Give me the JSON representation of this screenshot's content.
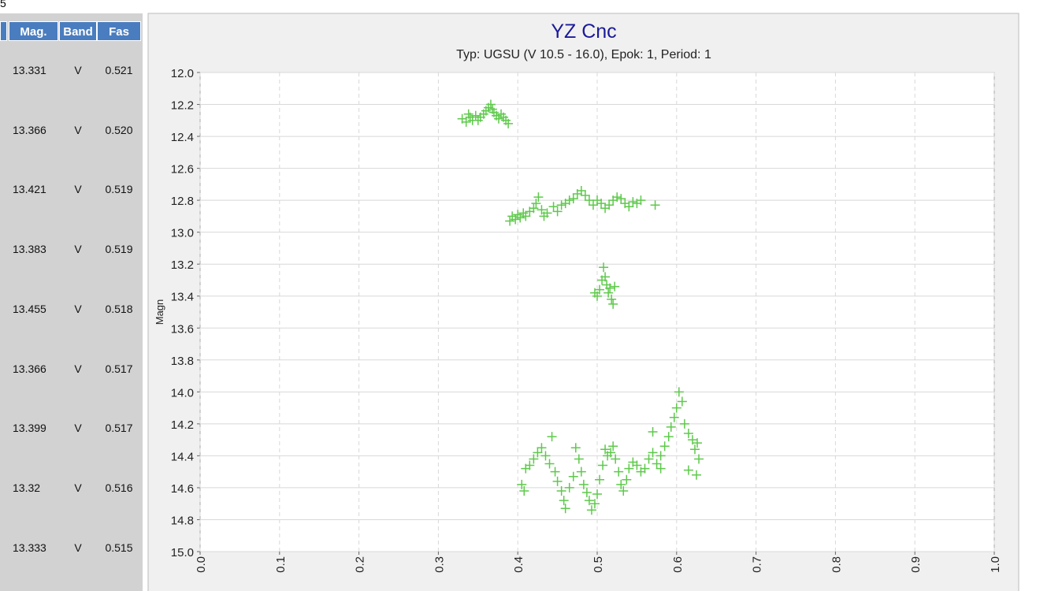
{
  "top_fragment": "5",
  "table": {
    "columns": [
      "Mag.",
      "Band",
      "Fas"
    ],
    "rows": [
      [
        "13.331",
        "V",
        "0.521"
      ],
      [
        "13.366",
        "V",
        "0.520"
      ],
      [
        "13.421",
        "V",
        "0.519"
      ],
      [
        "13.383",
        "V",
        "0.519"
      ],
      [
        "13.455",
        "V",
        "0.518"
      ],
      [
        "13.366",
        "V",
        "0.517"
      ],
      [
        "13.399",
        "V",
        "0.517"
      ],
      [
        "13.32",
        "V",
        "0.516"
      ],
      [
        "13.333",
        "V",
        "0.515"
      ]
    ]
  },
  "chart_data": {
    "type": "scatter",
    "title": "YZ Cnc",
    "subtitle": "Typ: UGSU (V 10.5 - 16.0), Epok: 1, Period: 1",
    "y_label": "Magn",
    "xlim": [
      0,
      1
    ],
    "ylim": [
      12,
      15
    ],
    "y_reversed": true,
    "xticks": [
      {
        "value": 0,
        "label": "0.0"
      },
      0.1,
      0.2,
      0.3,
      0.4,
      0.5,
      0.6,
      0.7,
      0.8,
      0.9,
      {
        "value": 1,
        "label": "1.0"
      }
    ],
    "yticks": [
      {
        "value": 12,
        "label": "12.0"
      },
      12.2,
      12.4,
      12.6,
      12.8,
      {
        "value": 13,
        "label": "13.0"
      },
      13.2,
      13.4,
      13.6,
      13.8,
      {
        "value": 14,
        "label": "14.0"
      },
      14.2,
      14.4,
      14.6,
      14.8,
      {
        "value": 15,
        "label": "15.0"
      }
    ],
    "grid": true,
    "series": [
      {
        "color": "#5ec94b",
        "x": [
          0.33,
          0.335,
          0.34,
          0.343,
          0.347,
          0.35,
          0.353,
          0.357,
          0.36,
          0.363,
          0.366,
          0.37,
          0.373,
          0.376,
          0.379,
          0.382,
          0.385,
          0.388,
          0.338,
          0.368,
          0.39,
          0.393,
          0.397,
          0.4,
          0.403,
          0.407,
          0.41,
          0.415,
          0.42,
          0.423,
          0.426,
          0.43,
          0.433,
          0.437,
          0.445,
          0.45,
          0.455,
          0.46,
          0.465,
          0.47,
          0.475,
          0.48,
          0.485,
          0.49,
          0.495,
          0.5,
          0.505,
          0.51,
          0.515,
          0.52,
          0.525,
          0.53,
          0.535,
          0.54,
          0.545,
          0.55,
          0.555,
          0.573,
          0.497,
          0.5,
          0.503,
          0.506,
          0.508,
          0.51,
          0.512,
          0.514,
          0.516,
          0.518,
          0.52,
          0.522,
          0.405,
          0.408,
          0.41,
          0.415,
          0.42,
          0.425,
          0.43,
          0.435,
          0.44,
          0.443,
          0.447,
          0.45,
          0.455,
          0.458,
          0.46,
          0.465,
          0.47,
          0.473,
          0.477,
          0.48,
          0.483,
          0.487,
          0.49,
          0.493,
          0.497,
          0.5,
          0.503,
          0.507,
          0.51,
          0.513,
          0.517,
          0.52,
          0.523,
          0.527,
          0.53,
          0.533,
          0.537,
          0.54,
          0.545,
          0.55,
          0.555,
          0.56,
          0.565,
          0.57,
          0.575,
          0.58,
          0.585,
          0.59,
          0.593,
          0.597,
          0.6,
          0.603,
          0.607,
          0.61,
          0.615,
          0.62,
          0.623,
          0.626,
          0.628,
          0.625,
          0.615,
          0.57,
          0.58
        ],
        "y": [
          12.29,
          12.31,
          12.28,
          12.3,
          12.27,
          12.3,
          12.28,
          12.26,
          12.24,
          12.22,
          12.2,
          12.25,
          12.27,
          12.29,
          12.26,
          12.28,
          12.3,
          12.32,
          12.26,
          12.23,
          12.93,
          12.9,
          12.92,
          12.89,
          12.91,
          12.88,
          12.9,
          12.87,
          12.85,
          12.82,
          12.78,
          12.86,
          12.9,
          12.88,
          12.84,
          12.87,
          12.83,
          12.82,
          12.8,
          12.79,
          12.76,
          12.74,
          12.77,
          12.8,
          12.83,
          12.8,
          12.82,
          12.85,
          12.83,
          12.8,
          12.78,
          12.79,
          12.82,
          12.84,
          12.81,
          12.82,
          12.8,
          12.83,
          13.38,
          13.4,
          13.36,
          13.3,
          13.22,
          13.28,
          13.33,
          13.38,
          13.35,
          13.42,
          13.45,
          13.34,
          14.58,
          14.62,
          14.48,
          14.46,
          14.42,
          14.38,
          14.35,
          14.4,
          14.45,
          14.28,
          14.5,
          14.56,
          14.62,
          14.68,
          14.73,
          14.6,
          14.53,
          14.35,
          14.42,
          14.5,
          14.58,
          14.63,
          14.68,
          14.74,
          14.7,
          14.64,
          14.55,
          14.46,
          14.36,
          14.4,
          14.38,
          14.34,
          14.42,
          14.5,
          14.58,
          14.62,
          14.55,
          14.48,
          14.44,
          14.46,
          14.5,
          14.48,
          14.42,
          14.38,
          14.45,
          14.4,
          14.34,
          14.28,
          14.22,
          14.16,
          14.1,
          14.0,
          14.06,
          14.2,
          14.26,
          14.3,
          14.36,
          14.32,
          14.42,
          14.52,
          14.49,
          14.25,
          14.48
        ]
      }
    ]
  }
}
